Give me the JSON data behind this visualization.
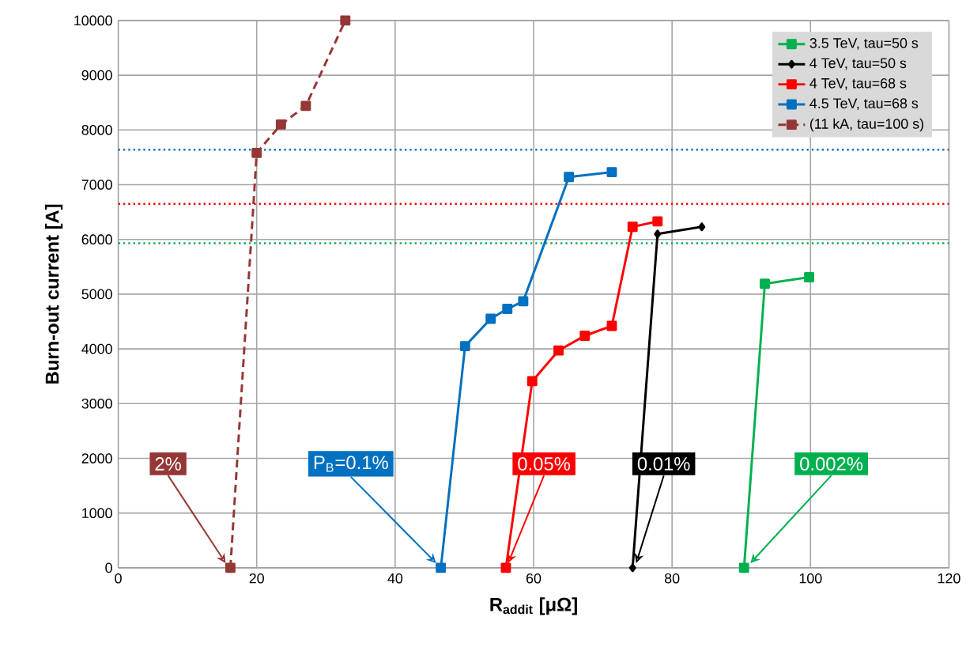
{
  "chart_data": {
    "type": "line",
    "xlabel": "**R$_{addit}$ [μΩ]**",
    "ylabel": "Burn-out current [A]",
    "xlim": [
      0,
      120
    ],
    "xticks": [
      0,
      20,
      40,
      60,
      80,
      100,
      120
    ],
    "ylim": [
      0,
      10000
    ],
    "yticks": [
      0,
      1000,
      2000,
      3000,
      4000,
      5000,
      6000,
      7000,
      8000,
      9000,
      10000
    ],
    "grid": true,
    "legend": "top right",
    "marker": "square",
    "line_style": "solid",
    "series": [
      {
        "name": "3.5 TeV, tau=50 s",
        "color": "#00b050",
        "x": [
          90.4,
          93.4,
          99.8
        ],
        "values": [
          0,
          5190,
          5310
        ]
      },
      {
        "name": "4 TeV, tau=50 s",
        "color": "#000000",
        "marker": "diamond",
        "x": [
          74.3,
          77.9,
          84.3
        ],
        "values": [
          0,
          6100,
          6230
        ]
      },
      {
        "name": "4 TeV, tau=68 s",
        "color": "#ff0000",
        "x": [
          56.0,
          59.8,
          63.6,
          67.4,
          71.3,
          74.3,
          77.9
        ],
        "values": [
          0,
          3410,
          3970,
          4240,
          4420,
          6230,
          6330
        ]
      },
      {
        "name": "4.5 TeV, tau=68 s",
        "color": "#0070c0",
        "x": [
          46.6,
          50.1,
          53.8,
          56.2,
          58.5,
          65.1,
          71.3
        ],
        "values": [
          0,
          4050,
          4550,
          4730,
          4870,
          7140,
          7230
        ]
      },
      {
        "name": "(11 kA, tau=100 s)",
        "color": "#953735",
        "line_style": "dashed",
        "x": [
          16.2,
          20.0,
          23.5,
          27.1,
          32.8
        ],
        "values": [
          0,
          7580,
          8100,
          8440,
          10000
        ]
      }
    ],
    "ref_lines": [
      {
        "axis": "y",
        "value": 7640,
        "color": "#0070c0",
        "line_style": "dotted"
      },
      {
        "axis": "y",
        "value": 6650,
        "color": "#ff0000",
        "line_style": "dotted"
      },
      {
        "axis": "y",
        "value": 5930,
        "color": "#00b050",
        "line_style": "dotted"
      }
    ],
    "annotations": [
      {
        "text": "2%",
        "x": 16.2,
        "y": 0
      },
      {
        "text": "P$_{B}$=0.1%",
        "x": 46.6,
        "y": 0
      },
      {
        "text": "0.05%",
        "x": 57.0,
        "y": 0
      },
      {
        "text": "0.01%",
        "x": 75.5,
        "y": 0
      },
      {
        "text": "0.002%",
        "x": 92.0,
        "y": 0
      }
    ]
  }
}
